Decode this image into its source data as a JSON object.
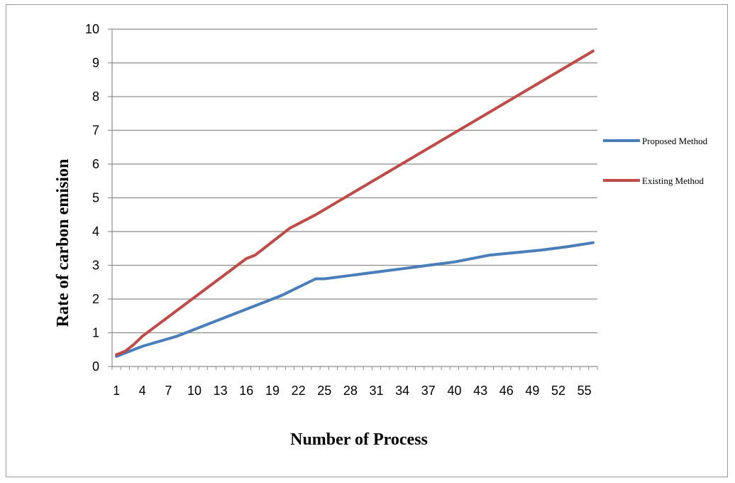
{
  "chart_data": {
    "type": "line",
    "xlabel": "Number of Process",
    "ylabel": "Rate of carbon emision",
    "ylim": [
      0,
      10
    ],
    "yticks": [
      0,
      1,
      2,
      3,
      4,
      5,
      6,
      7,
      8,
      9,
      10
    ],
    "x_count": 56,
    "xtick_labels": [
      "1",
      "4",
      "7",
      "10",
      "13",
      "16",
      "19",
      "22",
      "25",
      "28",
      "31",
      "34",
      "37",
      "40",
      "43",
      "46",
      "49",
      "52",
      "55"
    ],
    "grid": "horizontal",
    "legend_position": "right",
    "series": [
      {
        "name": "Proposed Method",
        "color": "#4a7ebb",
        "points": [
          [
            1,
            0.3
          ],
          [
            4,
            0.6
          ],
          [
            8,
            0.9
          ],
          [
            12,
            1.3
          ],
          [
            16,
            1.7
          ],
          [
            20,
            2.1
          ],
          [
            24,
            2.6
          ],
          [
            25,
            2.6
          ],
          [
            28,
            2.7
          ],
          [
            31,
            2.8
          ],
          [
            34,
            2.9
          ],
          [
            37,
            3.0
          ],
          [
            40,
            3.1
          ],
          [
            44,
            3.3
          ],
          [
            46,
            3.35
          ],
          [
            50,
            3.45
          ],
          [
            53,
            3.55
          ],
          [
            56,
            3.67
          ]
        ]
      },
      {
        "name": "Existing Method",
        "color": "#be4b48",
        "points": [
          [
            1,
            0.35
          ],
          [
            2,
            0.45
          ],
          [
            3,
            0.65
          ],
          [
            4,
            0.9
          ],
          [
            16,
            3.2
          ],
          [
            17,
            3.3
          ],
          [
            21,
            4.1
          ],
          [
            24,
            4.5
          ],
          [
            56,
            9.35
          ]
        ]
      }
    ]
  }
}
